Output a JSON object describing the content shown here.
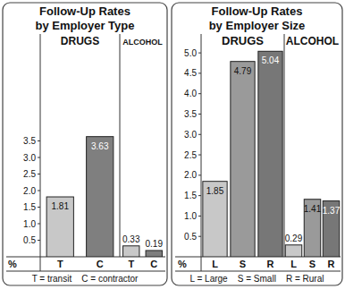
{
  "chart_data": [
    {
      "type": "bar",
      "title": [
        "Follow-Up Rates",
        "by Employer Type"
      ],
      "groups": [
        "DRUGS",
        "ALCOHOL"
      ],
      "categories": [
        "T",
        "C",
        "T",
        "C"
      ],
      "values": [
        1.81,
        3.63,
        0.33,
        0.19
      ],
      "colors": [
        "#c8c8c8",
        "#7f7f7f",
        "#c8c8c8",
        "#7f7f7f"
      ],
      "ylim": [
        0,
        4
      ],
      "yticks": [
        0.5,
        {
          "value": 1,
          "label": "1.0"
        },
        1.5,
        {
          "value": 2,
          "label": "2.0"
        },
        2.5,
        {
          "value": 3,
          "label": "3.0"
        },
        3.5
      ],
      "y_label": "%",
      "footnote": "T = transit    C = contractor",
      "data_labels": true,
      "grid": false
    },
    {
      "type": "bar",
      "title": [
        "Follow-Up Rates",
        "by Employer Size"
      ],
      "groups": [
        "DRUGS",
        "ALCOHOL"
      ],
      "categories": [
        "L",
        "S",
        "R",
        "L",
        "S",
        "R"
      ],
      "values": [
        1.85,
        4.79,
        5.04,
        0.29,
        1.41,
        1.37
      ],
      "colors": [
        "#c8c8c8",
        "#9a9a9a",
        "#777777",
        "#c8c8c8",
        "#9a9a9a",
        "#777777"
      ],
      "ylim": [
        0,
        5.2
      ],
      "yticks": [
        0.5,
        {
          "value": 1,
          "label": "1.0"
        },
        1.5,
        {
          "value": 2,
          "label": "2.0"
        },
        2.5,
        {
          "value": 3,
          "label": "3.0"
        },
        3.5,
        {
          "value": 4,
          "label": "4.0"
        },
        4.5,
        {
          "value": 5,
          "label": "5.0"
        }
      ],
      "y_label": "%",
      "footnote": "L = Large    S = Small    R = Rural",
      "data_labels": true,
      "grid": false
    }
  ]
}
